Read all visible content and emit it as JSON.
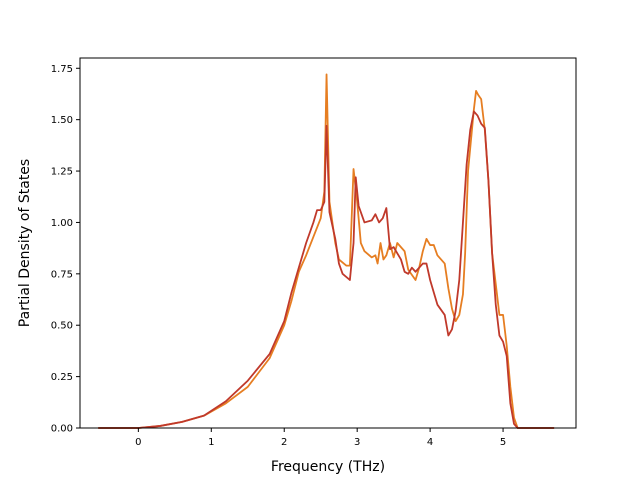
{
  "chart_data": {
    "type": "line",
    "title": "",
    "xlabel": "Frequency (THz)",
    "ylabel": "Partial Density of States",
    "xlim": [
      -0.8,
      6.0
    ],
    "ylim": [
      0,
      1.8
    ],
    "xticks": [
      0,
      1,
      2,
      3,
      4,
      5
    ],
    "yticks": [
      0.0,
      0.25,
      0.5,
      0.75,
      1.0,
      1.25,
      1.5,
      1.75
    ],
    "ytick_labels": [
      "0.00",
      "0.25",
      "0.50",
      "0.75",
      "1.00",
      "1.25",
      "1.50",
      "1.75"
    ],
    "grid": false,
    "legend": "none",
    "series": [
      {
        "color": "#e67e22",
        "points": [
          [
            -0.55,
            0.0
          ],
          [
            0.0,
            0.0
          ],
          [
            0.3,
            0.01
          ],
          [
            0.6,
            0.03
          ],
          [
            0.9,
            0.06
          ],
          [
            1.2,
            0.12
          ],
          [
            1.5,
            0.2
          ],
          [
            1.8,
            0.34
          ],
          [
            2.0,
            0.5
          ],
          [
            2.1,
            0.62
          ],
          [
            2.2,
            0.76
          ],
          [
            2.3,
            0.84
          ],
          [
            2.4,
            0.93
          ],
          [
            2.5,
            1.02
          ],
          [
            2.55,
            1.15
          ],
          [
            2.58,
            1.72
          ],
          [
            2.62,
            1.1
          ],
          [
            2.7,
            0.9
          ],
          [
            2.75,
            0.82
          ],
          [
            2.85,
            0.79
          ],
          [
            2.9,
            0.79
          ],
          [
            2.95,
            1.26
          ],
          [
            3.0,
            1.1
          ],
          [
            3.05,
            0.9
          ],
          [
            3.1,
            0.86
          ],
          [
            3.2,
            0.83
          ],
          [
            3.25,
            0.84
          ],
          [
            3.28,
            0.8
          ],
          [
            3.32,
            0.9
          ],
          [
            3.36,
            0.82
          ],
          [
            3.4,
            0.84
          ],
          [
            3.45,
            0.9
          ],
          [
            3.5,
            0.83
          ],
          [
            3.55,
            0.9
          ],
          [
            3.6,
            0.88
          ],
          [
            3.65,
            0.86
          ],
          [
            3.7,
            0.77
          ],
          [
            3.8,
            0.72
          ],
          [
            3.85,
            0.78
          ],
          [
            3.9,
            0.86
          ],
          [
            3.95,
            0.92
          ],
          [
            4.0,
            0.89
          ],
          [
            4.05,
            0.89
          ],
          [
            4.1,
            0.84
          ],
          [
            4.2,
            0.8
          ],
          [
            4.25,
            0.68
          ],
          [
            4.3,
            0.58
          ],
          [
            4.35,
            0.52
          ],
          [
            4.4,
            0.55
          ],
          [
            4.45,
            0.65
          ],
          [
            4.48,
            0.85
          ],
          [
            4.52,
            1.25
          ],
          [
            4.6,
            1.55
          ],
          [
            4.63,
            1.64
          ],
          [
            4.66,
            1.62
          ],
          [
            4.7,
            1.6
          ],
          [
            4.75,
            1.45
          ],
          [
            4.8,
            1.2
          ],
          [
            4.85,
            0.85
          ],
          [
            4.9,
            0.7
          ],
          [
            4.95,
            0.55
          ],
          [
            5.0,
            0.55
          ],
          [
            5.05,
            0.4
          ],
          [
            5.1,
            0.2
          ],
          [
            5.15,
            0.05
          ],
          [
            5.2,
            0.0
          ],
          [
            5.7,
            0.0
          ]
        ]
      },
      {
        "color": "#c0392b",
        "points": [
          [
            -0.55,
            0.0
          ],
          [
            0.0,
            0.0
          ],
          [
            0.3,
            0.01
          ],
          [
            0.6,
            0.03
          ],
          [
            0.9,
            0.06
          ],
          [
            1.2,
            0.13
          ],
          [
            1.5,
            0.23
          ],
          [
            1.8,
            0.36
          ],
          [
            2.0,
            0.52
          ],
          [
            2.1,
            0.66
          ],
          [
            2.2,
            0.78
          ],
          [
            2.3,
            0.9
          ],
          [
            2.4,
            1.0
          ],
          [
            2.45,
            1.06
          ],
          [
            2.5,
            1.06
          ],
          [
            2.55,
            1.1
          ],
          [
            2.58,
            1.47
          ],
          [
            2.62,
            1.05
          ],
          [
            2.7,
            0.92
          ],
          [
            2.75,
            0.8
          ],
          [
            2.8,
            0.75
          ],
          [
            2.9,
            0.72
          ],
          [
            2.95,
            0.9
          ],
          [
            2.98,
            1.22
          ],
          [
            3.02,
            1.08
          ],
          [
            3.1,
            1.0
          ],
          [
            3.2,
            1.01
          ],
          [
            3.25,
            1.04
          ],
          [
            3.3,
            1.0
          ],
          [
            3.35,
            1.02
          ],
          [
            3.4,
            1.07
          ],
          [
            3.45,
            0.87
          ],
          [
            3.5,
            0.88
          ],
          [
            3.55,
            0.85
          ],
          [
            3.6,
            0.82
          ],
          [
            3.65,
            0.76
          ],
          [
            3.7,
            0.75
          ],
          [
            3.75,
            0.78
          ],
          [
            3.8,
            0.76
          ],
          [
            3.85,
            0.78
          ],
          [
            3.9,
            0.8
          ],
          [
            3.95,
            0.8
          ],
          [
            4.0,
            0.72
          ],
          [
            4.05,
            0.66
          ],
          [
            4.1,
            0.6
          ],
          [
            4.2,
            0.55
          ],
          [
            4.25,
            0.45
          ],
          [
            4.3,
            0.48
          ],
          [
            4.35,
            0.57
          ],
          [
            4.4,
            0.72
          ],
          [
            4.45,
            1.0
          ],
          [
            4.5,
            1.28
          ],
          [
            4.55,
            1.45
          ],
          [
            4.6,
            1.54
          ],
          [
            4.65,
            1.52
          ],
          [
            4.7,
            1.48
          ],
          [
            4.75,
            1.46
          ],
          [
            4.8,
            1.2
          ],
          [
            4.85,
            0.85
          ],
          [
            4.9,
            0.6
          ],
          [
            4.95,
            0.45
          ],
          [
            5.0,
            0.42
          ],
          [
            5.05,
            0.35
          ],
          [
            5.1,
            0.12
          ],
          [
            5.15,
            0.02
          ],
          [
            5.2,
            0.0
          ],
          [
            5.7,
            0.0
          ]
        ]
      }
    ]
  }
}
